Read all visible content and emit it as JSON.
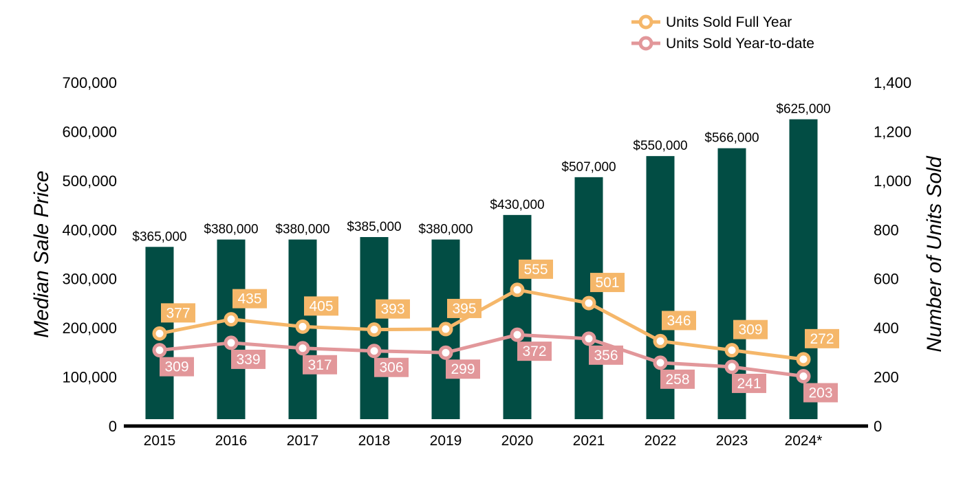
{
  "chart_data": {
    "type": "bar",
    "categories": [
      "2015",
      "2016",
      "2017",
      "2018",
      "2019",
      "2020",
      "2021",
      "2022",
      "2023",
      "2024*"
    ],
    "y_left": {
      "label": "Median Sale Price",
      "range": [
        0,
        700000
      ],
      "ticks": [
        "0",
        "100,000",
        "200,000",
        "300,000",
        "400,000",
        "500,000",
        "600,000",
        "700,000"
      ]
    },
    "y_right": {
      "label": "Number of Units Sold",
      "range": [
        0,
        1400
      ],
      "ticks": [
        "0",
        "200",
        "400",
        "600",
        "800",
        "1,000",
        "1,200",
        "1,400"
      ]
    },
    "bars": {
      "values": [
        365000,
        380000,
        380000,
        385000,
        380000,
        430000,
        507000,
        550000,
        566000,
        625000
      ],
      "labels": [
        "$365,000",
        "$380,000",
        "$380,000",
        "$385,000",
        "$380,000",
        "$430,000",
        "$507,000",
        "$550,000",
        "$566,000",
        "$625,000"
      ],
      "color": "#024d44"
    },
    "series": [
      {
        "name": "Units Sold Full Year",
        "values": [
          377,
          435,
          405,
          393,
          395,
          555,
          501,
          346,
          309,
          272
        ],
        "color": "#f5b76a",
        "axis": "right"
      },
      {
        "name": "Units Sold Year-to-date",
        "values": [
          309,
          339,
          317,
          306,
          299,
          372,
          356,
          258,
          241,
          203
        ],
        "color": "#e2979a",
        "axis": "right"
      }
    ],
    "legend": "top-right",
    "grid": false
  }
}
